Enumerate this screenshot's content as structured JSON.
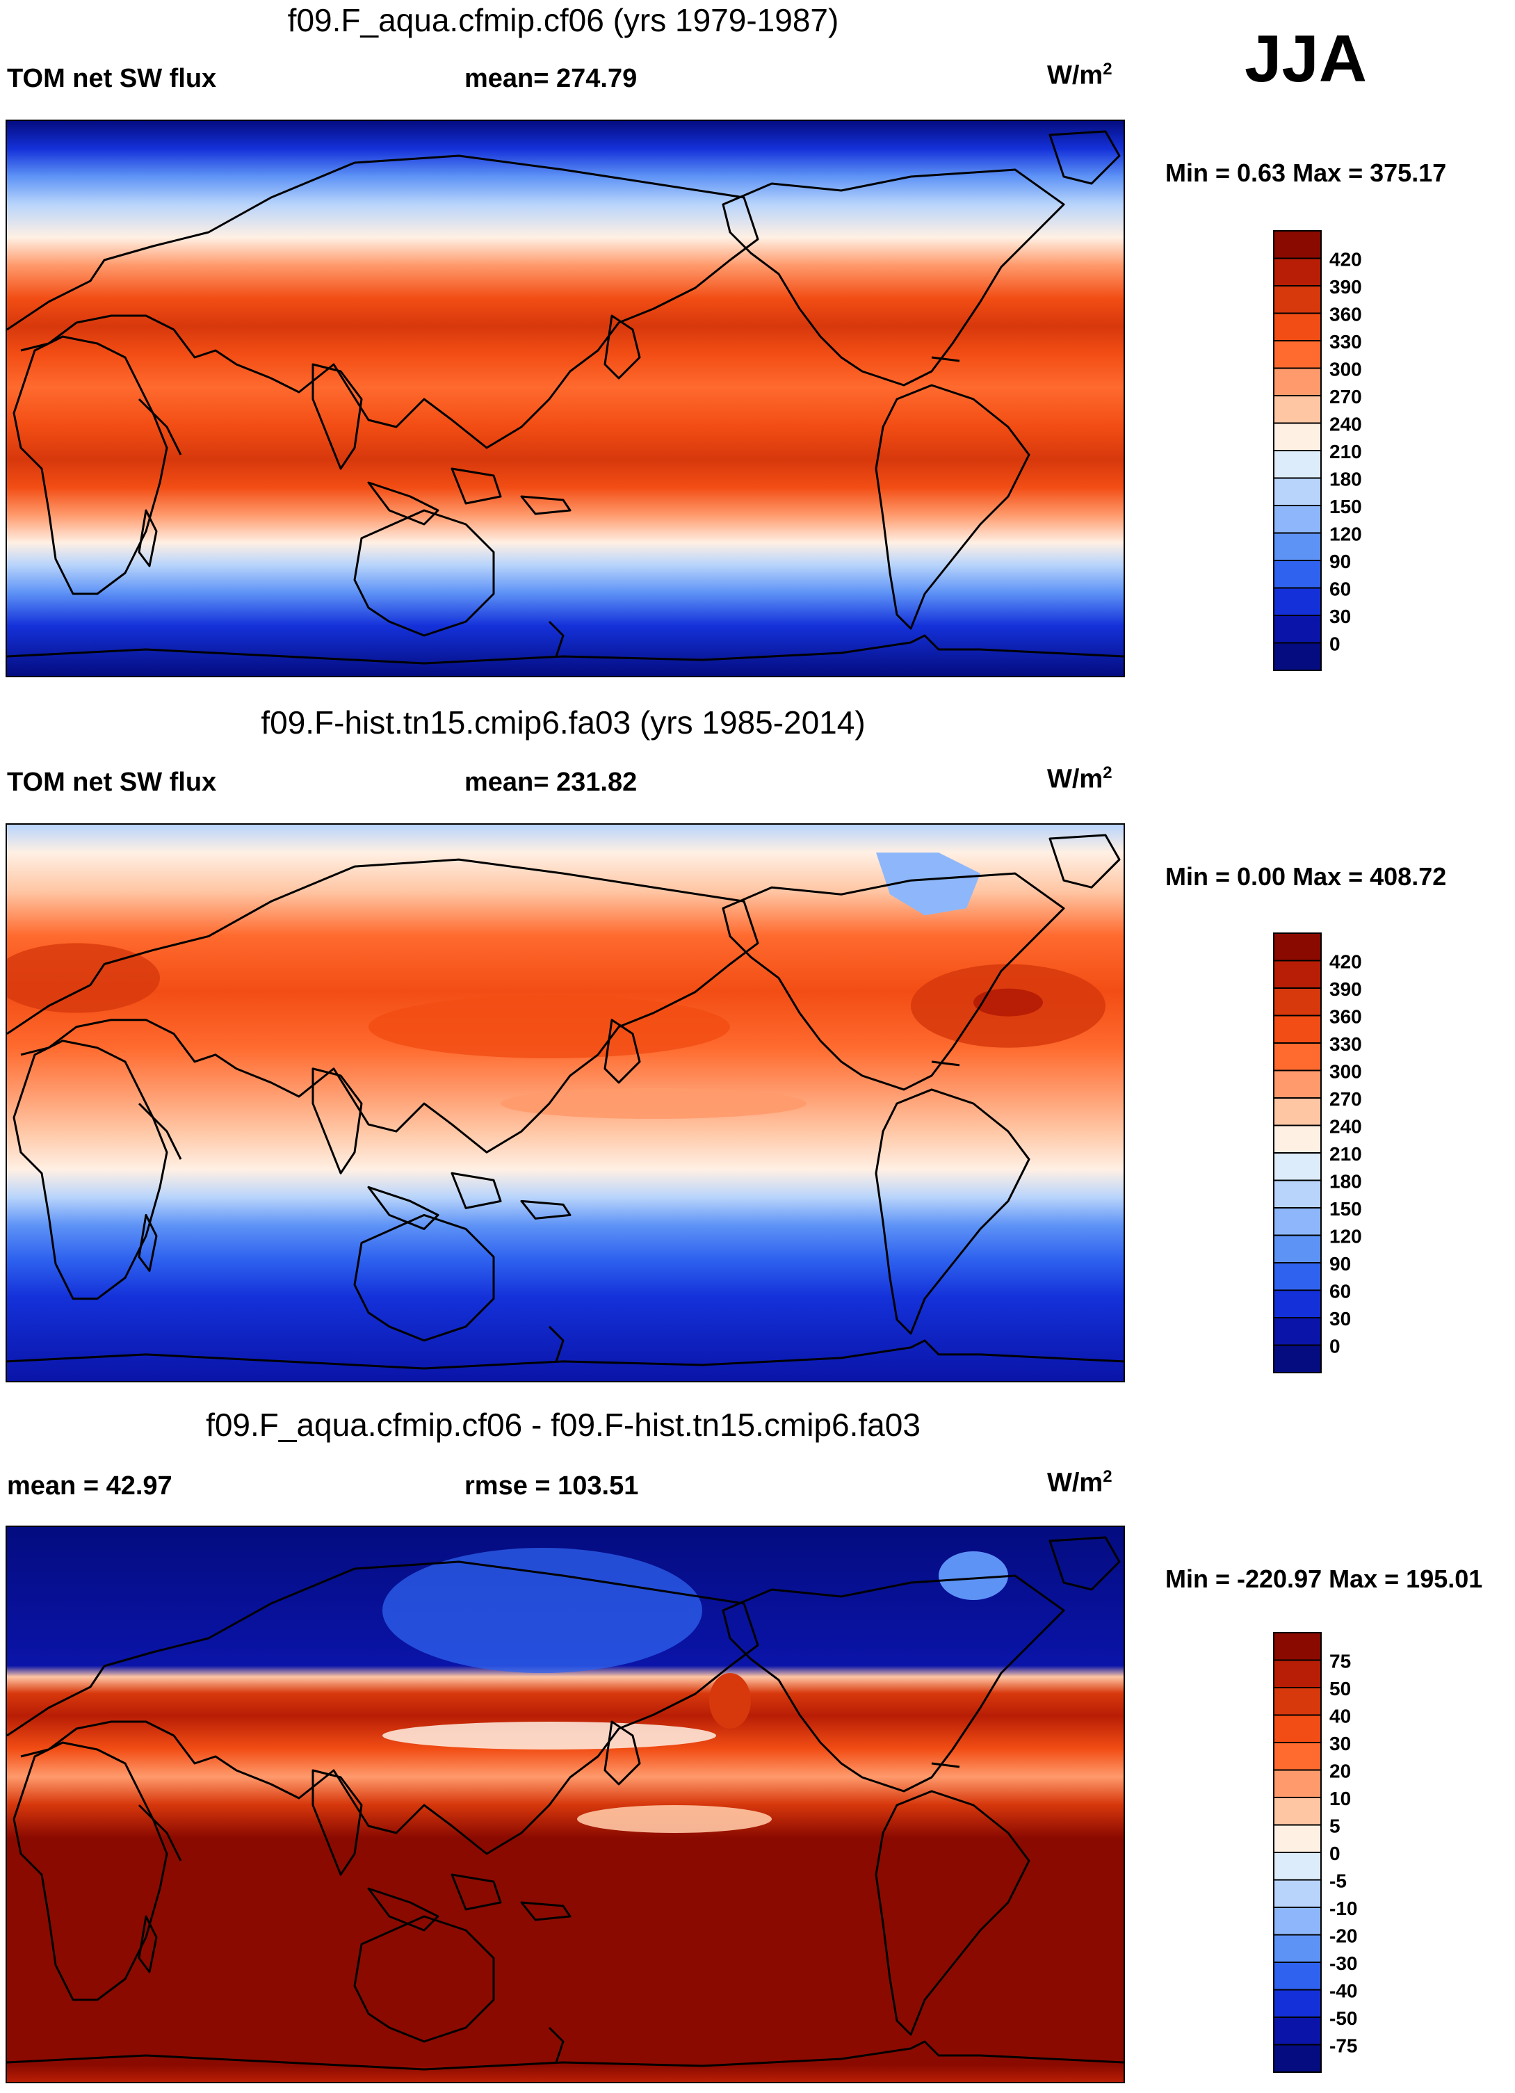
{
  "season": "JJA",
  "chart_data": [
    {
      "type": "heatmap",
      "title": "f09.F_aqua.cfmip.cf06 (yrs 1979-1987)",
      "variable": "TOM net SW flux",
      "stat_text": "mean= 274.79",
      "units_base": "W/m",
      "units_exp": "2",
      "min_text": "Min =   0.63 Max = 375.17",
      "colorbar": {
        "labels": [
          "420",
          "390",
          "360",
          "330",
          "300",
          "270",
          "240",
          "210",
          "180",
          "150",
          "120",
          "90",
          "60",
          "30",
          "0"
        ],
        "colors": [
          "#8b0a00",
          "#b81e05",
          "#d7380c",
          "#f24d14",
          "#ff6a2e",
          "#ff9a6c",
          "#ffc6a4",
          "#fff0e4",
          "#dcecfa",
          "#b8d4fb",
          "#8db7fa",
          "#5e93f6",
          "#2f63ef",
          "#1431d9",
          "#0a14a8",
          "#040c80"
        ]
      },
      "description_profile": "zonal bands"
    },
    {
      "type": "heatmap",
      "title": "f09.F-hist.tn15.cmip6.fa03 (yrs 1985-2014)",
      "variable": "TOM net SW flux",
      "stat_text": "mean= 231.82",
      "units_base": "W/m",
      "units_exp": "2",
      "min_text": "Min =   0.00 Max = 408.72",
      "colorbar": {
        "labels": [
          "420",
          "390",
          "360",
          "330",
          "300",
          "270",
          "240",
          "210",
          "180",
          "150",
          "120",
          "90",
          "60",
          "30",
          "0"
        ],
        "colors": [
          "#8b0a00",
          "#b81e05",
          "#d7380c",
          "#f24d14",
          "#ff6a2e",
          "#ff9a6c",
          "#ffc6a4",
          "#fff0e4",
          "#dcecfa",
          "#b8d4fb",
          "#8db7fa",
          "#5e93f6",
          "#2f63ef",
          "#1431d9",
          "#0a14a8",
          "#040c80"
        ]
      }
    },
    {
      "type": "heatmap",
      "title": "f09.F_aqua.cfmip.cf06 - f09.F-hist.tn15.cmip6.fa03",
      "variable": "mean =  42.97",
      "stat_text": "rmse = 103.51",
      "units_base": "W/m",
      "units_exp": "2",
      "min_text": "Min = -220.97 Max = 195.01",
      "colorbar": {
        "labels": [
          "75",
          "50",
          "40",
          "30",
          "20",
          "10",
          "5",
          "0",
          "-5",
          "-10",
          "-20",
          "-30",
          "-40",
          "-50",
          "-75"
        ],
        "colors": [
          "#8b0a00",
          "#b81e05",
          "#d7380c",
          "#f24d14",
          "#ff6a2e",
          "#ff9a6c",
          "#ffc6a4",
          "#fff0e4",
          "#dcecfa",
          "#b8d4fb",
          "#8db7fa",
          "#5e93f6",
          "#2f63ef",
          "#1431d9",
          "#0a14a8",
          "#040c80"
        ]
      }
    }
  ]
}
